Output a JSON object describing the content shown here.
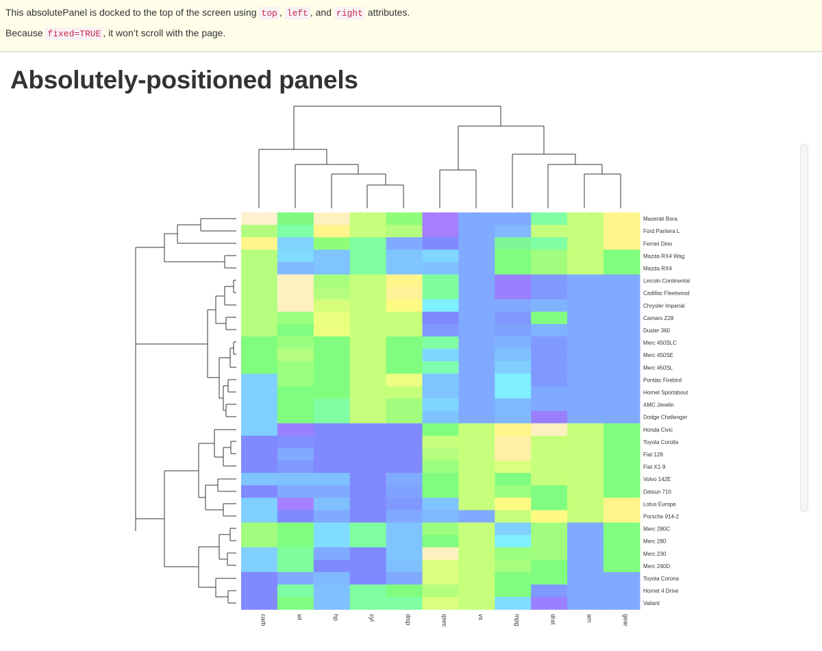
{
  "panel": {
    "line1_before": "This absolutePanel is docked to the top of the screen using ",
    "code_top": "top",
    "sep1": ", ",
    "code_left": "left",
    "sep2": ", and ",
    "code_right": "right",
    "line1_after": " attributes.",
    "line2_before": "Because ",
    "code_fixed": "fixed=TRUE",
    "line2_after": ", it won’t scroll with the page."
  },
  "page": {
    "title": "Absolutely-positioned panels"
  },
  "chart_data": {
    "type": "heatmap",
    "columns": [
      "carb",
      "wt",
      "hp",
      "cyl",
      "disp",
      "qsec",
      "vs",
      "mpg",
      "drat",
      "am",
      "gear"
    ],
    "rows": [
      "Maserati Bora",
      "Ford Pantera L",
      "Ferrari Dino",
      "Mazda RX4 Wag",
      "Mazda RX4",
      "Lincoln Continental",
      "Cadillac Fleetwood",
      "Chrysler Imperial",
      "Camaro Z28",
      "Duster 360",
      "Merc 450SLC",
      "Merc 450SE",
      "Merc 450SL",
      "Pontiac Firebird",
      "Hornet Sportabout",
      "AMC Javelin",
      "Dodge Challenger",
      "Honda Civic",
      "Toyota Corolla",
      "Fiat 128",
      "Fiat X1-9",
      "Volvo 142E",
      "Datsun 710",
      "Lotus Europa",
      "Porsche 914-2",
      "Merc 280C",
      "Merc 280",
      "Merc 230",
      "Merc 240D",
      "Toyota Corona",
      "Hornet 4 Drive",
      "Valiant"
    ],
    "cell_colors": [
      [
        "#fff0cf",
        "#7ff97f",
        "#fff0c0",
        "#c6ff7b",
        "#90fd78",
        "#a67fff",
        "#80aaff",
        "#80aaff",
        "#80fea3",
        "#c6ff7b",
        "#fff58a"
      ],
      [
        "#b2fd7e",
        "#7fffa8",
        "#fff58a",
        "#c6ff7b",
        "#b4fd7e",
        "#a67fff",
        "#80aaff",
        "#80b9ff",
        "#c6ff7b",
        "#c6ff7b",
        "#fff58a"
      ],
      [
        "#fff58a",
        "#7fd5ff",
        "#90fd78",
        "#7fff9f",
        "#80aaff",
        "#8089ff",
        "#80aaff",
        "#7ff797",
        "#80fea3",
        "#c6ff7b",
        "#fff58a"
      ],
      [
        "#b5fd7e",
        "#7fdcff",
        "#7fc3ff",
        "#7fff9f",
        "#7fc4ff",
        "#7fd7ff",
        "#80aaff",
        "#80fd7e",
        "#a2fd7e",
        "#c6ff7b",
        "#80fd7e"
      ],
      [
        "#b5fd7e",
        "#80b9ff",
        "#7fc3ff",
        "#7fff9f",
        "#7fc4ff",
        "#7fc1ff",
        "#80aaff",
        "#80fd7e",
        "#a2fd7e",
        "#c6ff7b",
        "#80fd7e"
      ],
      [
        "#b5fd7e",
        "#fff0c0",
        "#a8fd7e",
        "#c6ff7b",
        "#fff58a",
        "#80fe9e",
        "#80aaff",
        "#9a80ff",
        "#8099ff",
        "#80aaff",
        "#80aaff"
      ],
      [
        "#b5fd7e",
        "#fff0c0",
        "#b4fd7e",
        "#c6ff7b",
        "#fff297",
        "#80fe9e",
        "#80aaff",
        "#9a80ff",
        "#8099ff",
        "#80aaff",
        "#80aaff"
      ],
      [
        "#b5fd7e",
        "#fff0c0",
        "#d6fe7b",
        "#c6ff7b",
        "#fffa82",
        "#7ff0ff",
        "#80aaff",
        "#80aaff",
        "#80b3ff",
        "#80aaff",
        "#80aaff"
      ],
      [
        "#b5fd7e",
        "#9cfe7e",
        "#ecfe7e",
        "#c6ff7b",
        "#c6ff7b",
        "#8089ff",
        "#80aaff",
        "#8099ff",
        "#80fc80",
        "#80aaff",
        "#80aaff"
      ],
      [
        "#b5fd7e",
        "#80fc80",
        "#ecfe7e",
        "#c6ff7b",
        "#c6ff7b",
        "#8099ff",
        "#80aaff",
        "#80a2ff",
        "#80b3ff",
        "#80aaff",
        "#80aaff"
      ],
      [
        "#80fd7e",
        "#9cfe7e",
        "#80fd7e",
        "#c6ff7b",
        "#80fd7e",
        "#80fea3",
        "#80aaff",
        "#80b3ff",
        "#8099ff",
        "#80aaff",
        "#80aaff"
      ],
      [
        "#80fd7e",
        "#b4fd7e",
        "#80fd7e",
        "#c6ff7b",
        "#80fd7e",
        "#7fd7ff",
        "#80aaff",
        "#7fc1ff",
        "#8099ff",
        "#80aaff",
        "#80aaff"
      ],
      [
        "#80fd7e",
        "#9cfe7e",
        "#80fd7e",
        "#c6ff7b",
        "#80fd7e",
        "#80feb0",
        "#80aaff",
        "#7fd0ff",
        "#8099ff",
        "#80aaff",
        "#80aaff"
      ],
      [
        "#7fd0ff",
        "#9cfe7e",
        "#80fd7e",
        "#c6ff7b",
        "#eefe82",
        "#7fc4ff",
        "#80aaff",
        "#7ff0ff",
        "#8099ff",
        "#80aaff",
        "#80aaff"
      ],
      [
        "#7fd0ff",
        "#80fd7e",
        "#80fd7e",
        "#c6ff7b",
        "#c6ff7b",
        "#7fc4ff",
        "#80aaff",
        "#7ff0ff",
        "#80aaff",
        "#80aaff",
        "#80aaff"
      ],
      [
        "#7fd0ff",
        "#80fd7e",
        "#80fea3",
        "#c6ff7b",
        "#a2fd7e",
        "#7fd7ff",
        "#80aaff",
        "#80b9ff",
        "#80aaff",
        "#80aaff",
        "#80aaff"
      ],
      [
        "#7fd0ff",
        "#80fd7e",
        "#80fea3",
        "#c6ff7b",
        "#a2fd7e",
        "#7fc4ff",
        "#80aaff",
        "#80b9ff",
        "#9a80ff",
        "#80aaff",
        "#80aaff"
      ],
      [
        "#7fd0ff",
        "#9a80ff",
        "#8089ff",
        "#8089ff",
        "#8089ff",
        "#80fd7e",
        "#c6ff7b",
        "#fff58a",
        "#fff0c0",
        "#c6ff7b",
        "#80fd7e"
      ],
      [
        "#8089ff",
        "#8091ff",
        "#8089ff",
        "#8089ff",
        "#8089ff",
        "#c6ff7b",
        "#c6ff7b",
        "#fff0a8",
        "#c6ff7b",
        "#c6ff7b",
        "#80fd7e"
      ],
      [
        "#8089ff",
        "#80aaff",
        "#8089ff",
        "#8089ff",
        "#8089ff",
        "#b4fd7e",
        "#c6ff7b",
        "#fff0a8",
        "#c6ff7b",
        "#c6ff7b",
        "#80fd7e"
      ],
      [
        "#8089ff",
        "#8099ff",
        "#8089ff",
        "#8089ff",
        "#8089ff",
        "#9cfe7e",
        "#c6ff7b",
        "#dafe7e",
        "#c6ff7b",
        "#c6ff7b",
        "#80fd7e"
      ],
      [
        "#7fc4ff",
        "#7fc1ff",
        "#7fc1ff",
        "#8089ff",
        "#80aaff",
        "#80fd7e",
        "#c6ff7b",
        "#80fc80",
        "#c6ff7b",
        "#c6ff7b",
        "#80fd7e"
      ],
      [
        "#8089ff",
        "#80aaff",
        "#80aaff",
        "#8089ff",
        "#80a2ff",
        "#80fd7e",
        "#c6ff7b",
        "#9cfe7e",
        "#80fc80",
        "#c6ff7b",
        "#80fd7e"
      ],
      [
        "#7fd0ff",
        "#a67fff",
        "#7fc1ff",
        "#8089ff",
        "#8099ff",
        "#7fc4ff",
        "#c6ff7b",
        "#fffa82",
        "#80fc80",
        "#c6ff7b",
        "#fff58a"
      ],
      [
        "#7fd0ff",
        "#8089ff",
        "#80aaff",
        "#8089ff",
        "#80aaff",
        "#80b9ff",
        "#80aaff",
        "#c6ff7b",
        "#fffa82",
        "#c6ff7b",
        "#fff58a"
      ],
      [
        "#a2fd7e",
        "#80fd7e",
        "#7fdcff",
        "#7fff9f",
        "#7fc4ff",
        "#9cfe7e",
        "#c6ff7b",
        "#7fd0ff",
        "#a2fd7e",
        "#80aaff",
        "#80fd7e"
      ],
      [
        "#a2fd7e",
        "#80fd7e",
        "#7fdcff",
        "#7fff9f",
        "#7fc4ff",
        "#80fc80",
        "#c6ff7b",
        "#7ff0ff",
        "#a2fd7e",
        "#80aaff",
        "#80fd7e"
      ],
      [
        "#7fd0ff",
        "#80fe9e",
        "#80aaff",
        "#8089ff",
        "#7fc4ff",
        "#fff0c0",
        "#c6ff7b",
        "#9cfe7e",
        "#a2fd7e",
        "#80aaff",
        "#80fd7e"
      ],
      [
        "#7fd0ff",
        "#80fe9e",
        "#8089ff",
        "#8089ff",
        "#7fc1ff",
        "#dafe7e",
        "#c6ff7b",
        "#a8fd7e",
        "#80fd7e",
        "#80aaff",
        "#80fd7e"
      ],
      [
        "#8089ff",
        "#80aaff",
        "#80b9ff",
        "#8089ff",
        "#80aaff",
        "#dafe7e",
        "#c6ff7b",
        "#80fd7e",
        "#80fd7e",
        "#80aaff",
        "#80aaff"
      ],
      [
        "#8089ff",
        "#80fea3",
        "#7fc1ff",
        "#7fff9f",
        "#80fd7e",
        "#b4fd7e",
        "#c6ff7b",
        "#80fd7e",
        "#8099ff",
        "#80aaff",
        "#80aaff"
      ],
      [
        "#8089ff",
        "#80fc80",
        "#7fc1ff",
        "#7fff9f",
        "#80fea3",
        "#dafe7e",
        "#c6ff7b",
        "#7fdcff",
        "#9a80ff",
        "#80aaff",
        "#80aaff"
      ]
    ]
  }
}
